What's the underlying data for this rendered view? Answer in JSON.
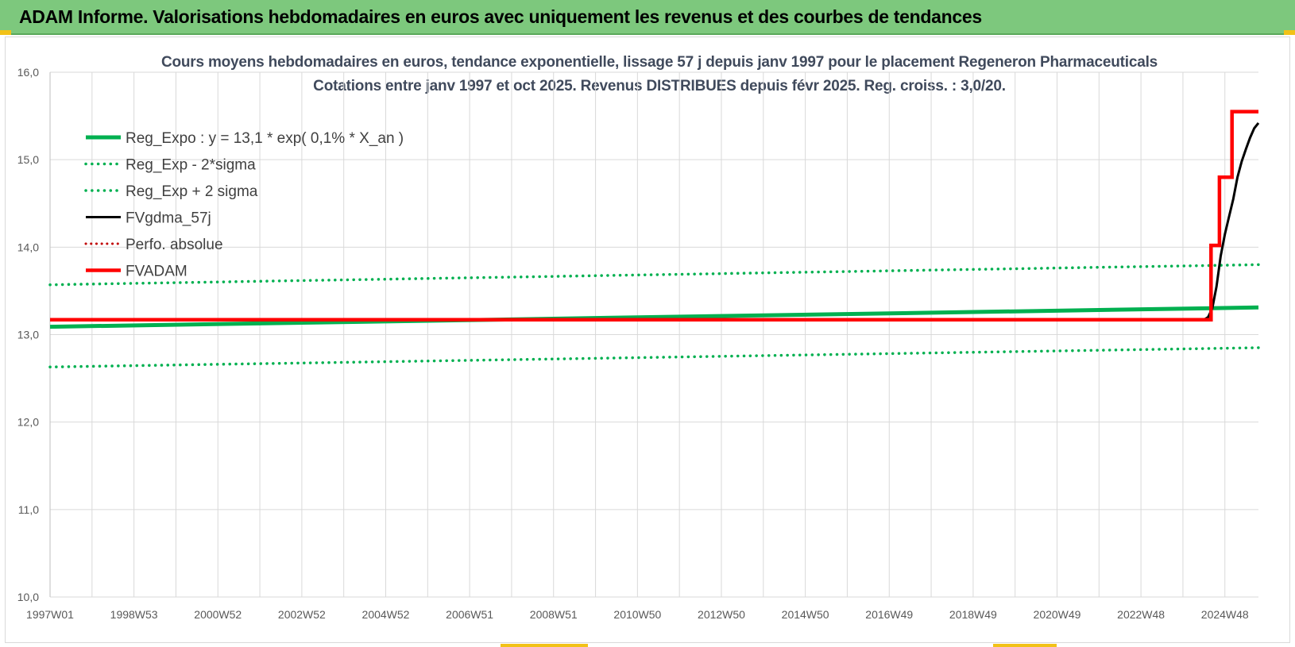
{
  "banner": {
    "title": "ADAM Informe. Valorisations hebdomadaires en euros avec uniquement les revenus et des courbes de tendances"
  },
  "colors": {
    "banner_bg": "#7dc87d",
    "green": "#00b050",
    "black": "#000000",
    "red": "#ff0000",
    "grid": "#d9d9d9"
  },
  "chart_data": {
    "type": "line",
    "title_line1": "Cours moyens hebdomadaires en euros, tendance exponentielle, lissage 57 j depuis janv 1997 pour le placement Regeneron Pharmaceuticals",
    "title_line2": "Cotations entre janv 1997 et oct 2025. Revenus DISTRIBUES depuis févr 2025. Reg. croiss. : 3,0/20.",
    "ylim": [
      10.0,
      16.0
    ],
    "yticks": [
      "10,0",
      "11,0",
      "12,0",
      "13,0",
      "14,0",
      "15,0",
      "16,0"
    ],
    "xlim": [
      1997.0,
      2025.8
    ],
    "xticks": [
      {
        "label": "1997W01",
        "x": 1997.0
      },
      {
        "label": "1998W53",
        "x": 1999.0
      },
      {
        "label": "2000W52",
        "x": 2001.0
      },
      {
        "label": "2002W52",
        "x": 2003.0
      },
      {
        "label": "2004W52",
        "x": 2005.0
      },
      {
        "label": "2006W51",
        "x": 2007.0
      },
      {
        "label": "2008W51",
        "x": 2009.0
      },
      {
        "label": "2010W50",
        "x": 2011.0
      },
      {
        "label": "2012W50",
        "x": 2013.0
      },
      {
        "label": "2014W50",
        "x": 2015.0
      },
      {
        "label": "2016W49",
        "x": 2017.0
      },
      {
        "label": "2018W49",
        "x": 2019.0
      },
      {
        "label": "2020W49",
        "x": 2021.0
      },
      {
        "label": "2022W48",
        "x": 2023.0
      },
      {
        "label": "2024W48",
        "x": 2025.0
      }
    ],
    "legend_position": "top-left",
    "grid": true,
    "series": [
      {
        "name": "Reg_Expo : y = 13,1 * exp( 0,1% *  X_an )",
        "style": "solid",
        "color": "#00b050",
        "width": 5,
        "x": [
          1997.0,
          2025.8
        ],
        "y": [
          13.09,
          13.31
        ]
      },
      {
        "name": "Reg_Exp - 2*sigma",
        "style": "dotted",
        "color": "#00b050",
        "width": 3.5,
        "x": [
          1997.0,
          2025.8
        ],
        "y": [
          12.63,
          12.85
        ]
      },
      {
        "name": "Reg_Exp + 2 sigma",
        "style": "dotted",
        "color": "#00b050",
        "width": 3.5,
        "x": [
          1997.0,
          2025.8
        ],
        "y": [
          13.57,
          13.8
        ]
      },
      {
        "name": "FVgdma_57j",
        "style": "solid",
        "color": "#000000",
        "width": 3,
        "x": [
          1997.0,
          2024.5,
          2024.6,
          2024.7,
          2024.8,
          2024.9,
          2025.0,
          2025.1,
          2025.2,
          2025.3,
          2025.4,
          2025.5,
          2025.6,
          2025.7,
          2025.8
        ],
        "y": [
          13.17,
          13.17,
          13.2,
          13.3,
          13.55,
          13.9,
          14.15,
          14.35,
          14.55,
          14.8,
          14.98,
          15.12,
          15.25,
          15.36,
          15.42
        ]
      },
      {
        "name": "Perfo. absolue",
        "style": "dotted",
        "color": "#c00000",
        "width": 3,
        "x": [],
        "y": []
      },
      {
        "name": "FVADAM",
        "style": "solid",
        "color": "#ff0000",
        "width": 4.5,
        "x": [
          1997.0,
          2024.67,
          2024.67,
          2024.87,
          2024.87,
          2025.17,
          2025.17,
          2025.42,
          2025.42,
          2025.8
        ],
        "y": [
          13.17,
          13.17,
          14.02,
          14.02,
          14.8,
          14.8,
          15.55,
          15.55,
          15.55,
          15.55
        ]
      }
    ]
  }
}
